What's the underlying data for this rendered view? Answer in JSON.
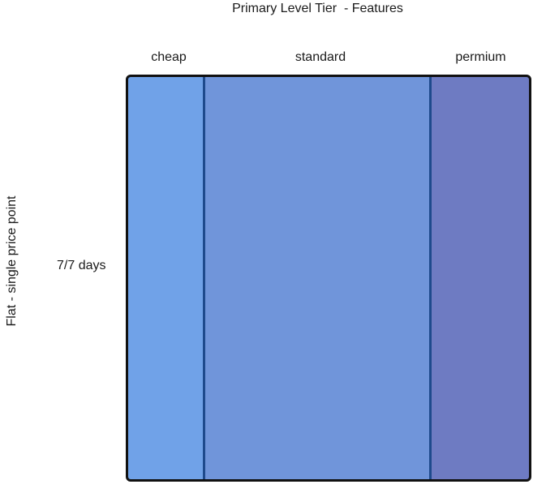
{
  "title": "Primary Level Tier  - Features",
  "y_axis_label": "Flat - single price point",
  "row_label": "7/7 days",
  "tiers": [
    {
      "label": "cheap",
      "color": "#70a2e8"
    },
    {
      "label": "standard",
      "color": "#7095da"
    },
    {
      "label": "permium",
      "color": "#6e7bc2"
    }
  ]
}
